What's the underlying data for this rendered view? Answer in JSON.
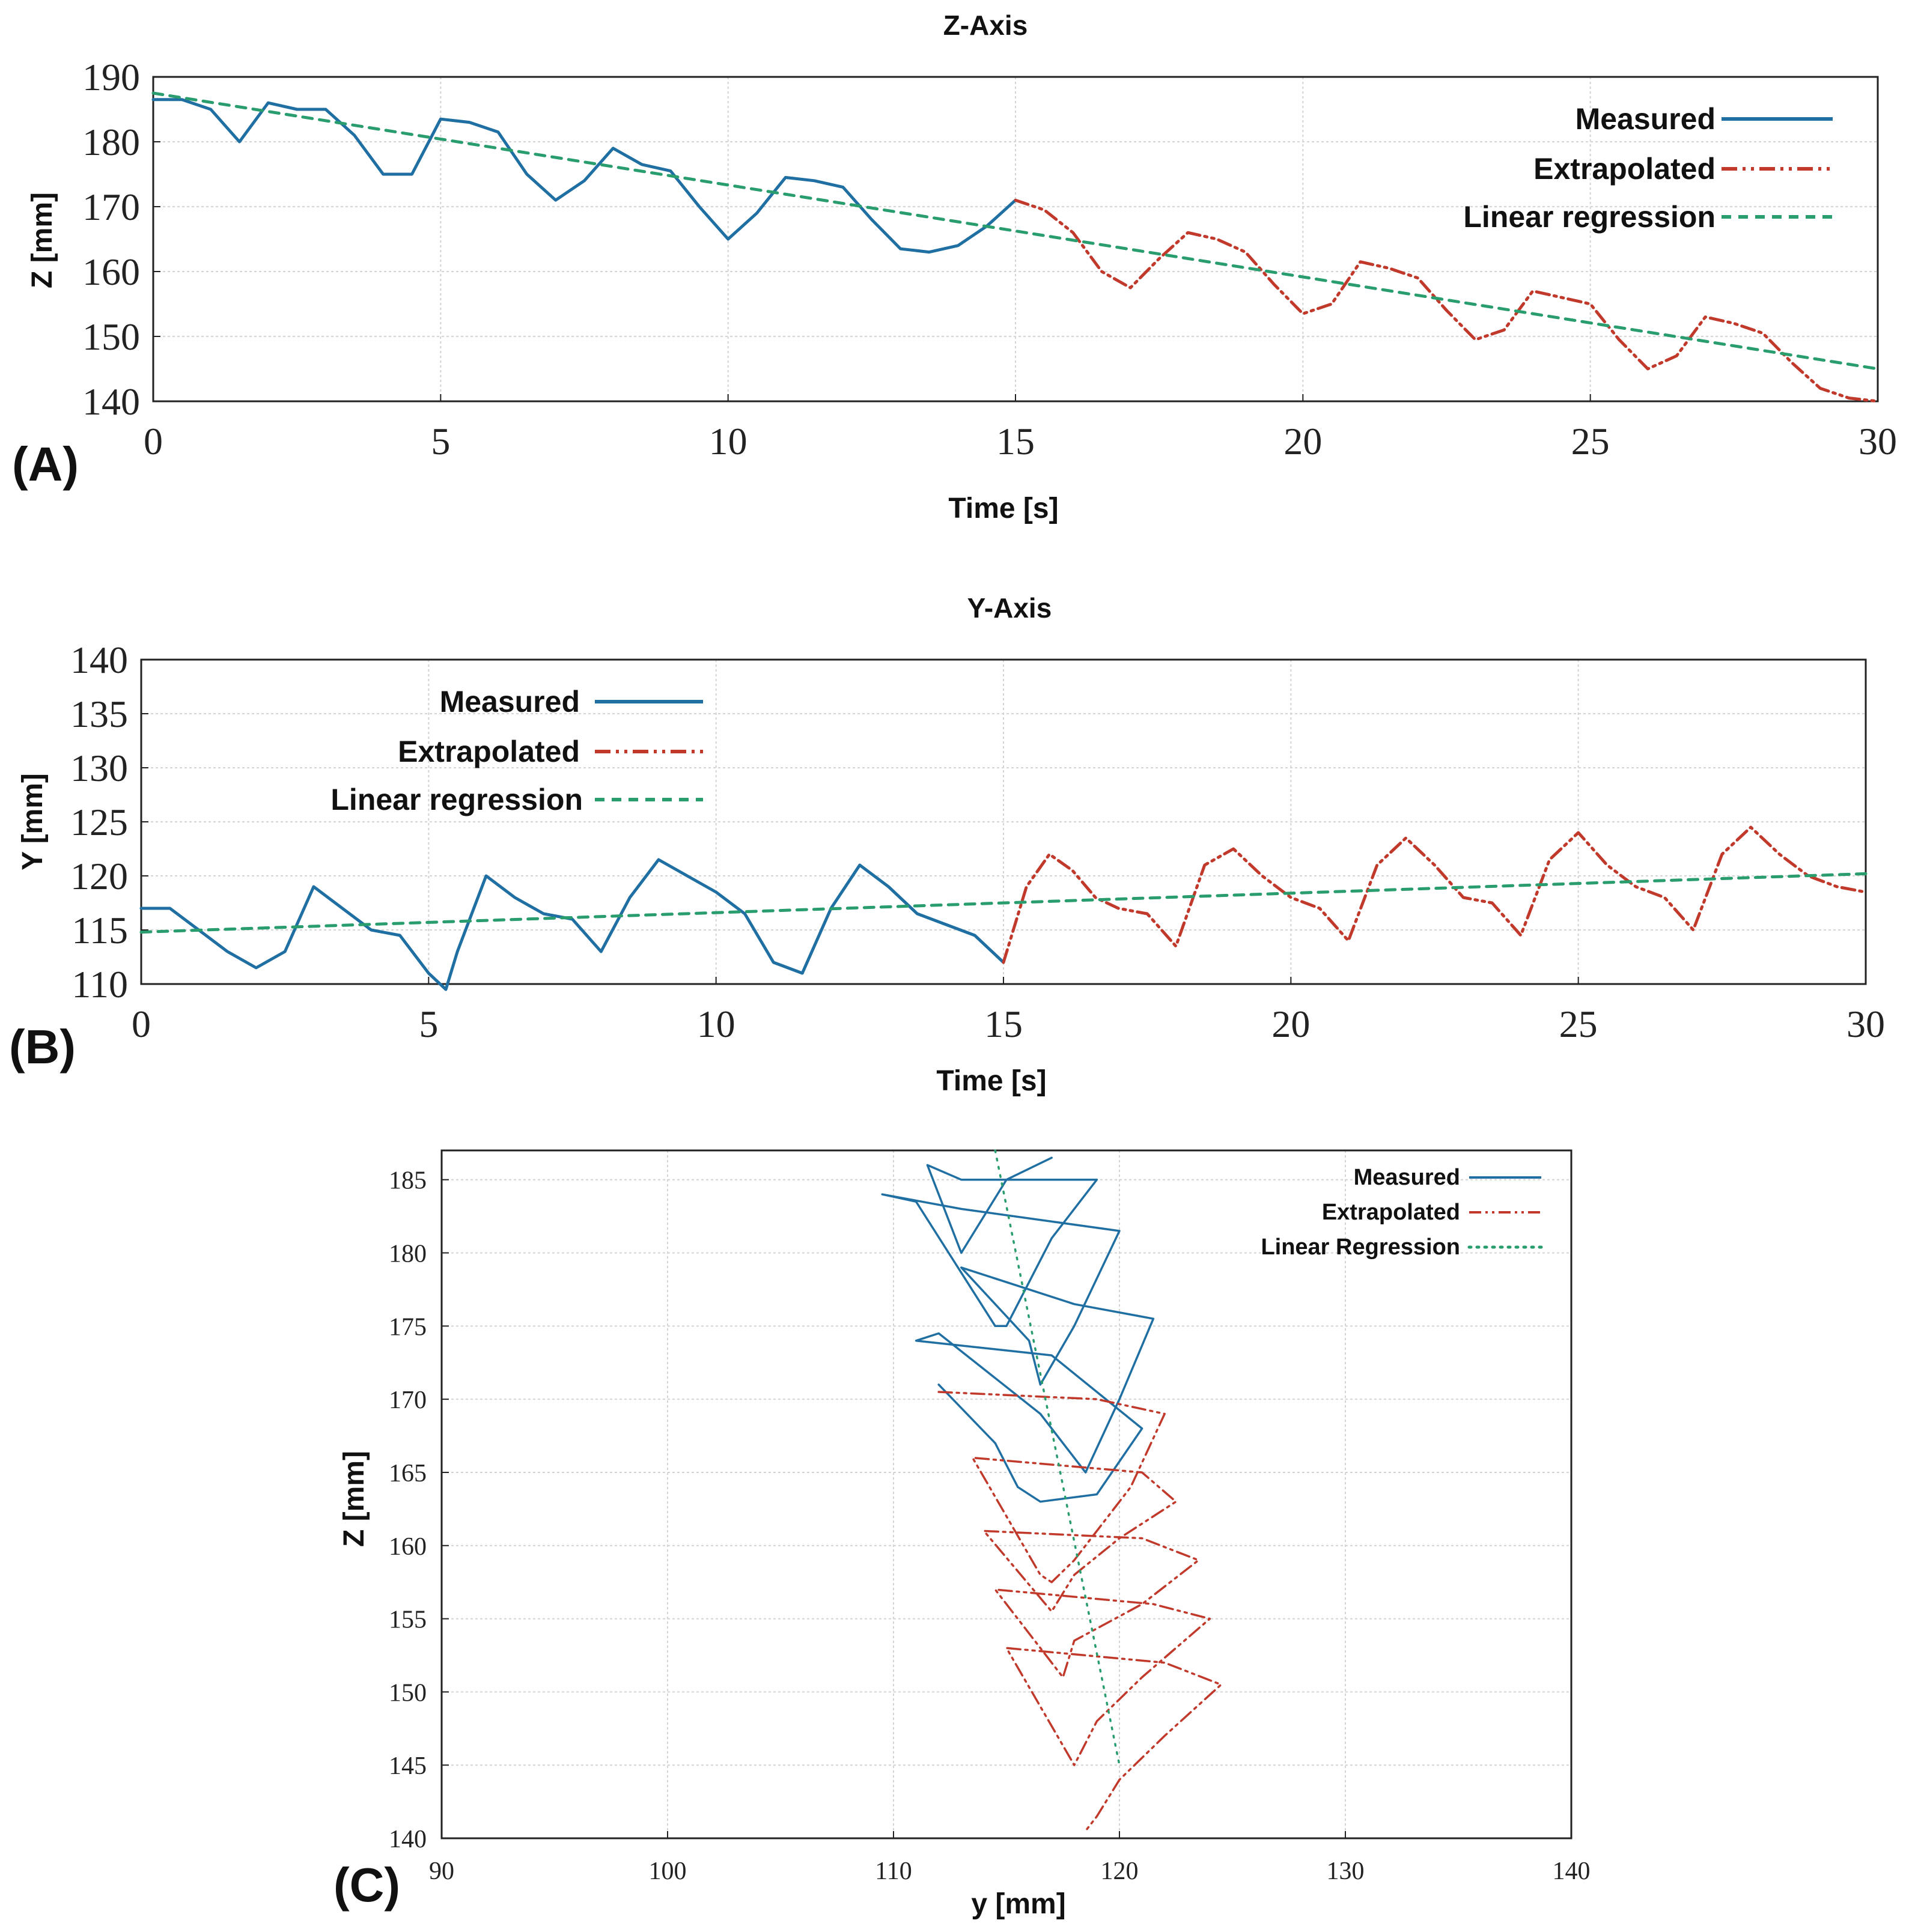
{
  "colors": {
    "measured": "#1f6fa3",
    "extrapolated": "#c0392b",
    "regression": "#2a9d6e"
  },
  "chart_data": [
    {
      "id": "A",
      "type": "line",
      "panel_label": "(A)",
      "title": "Z-Axis",
      "xlabel": "Time [s]",
      "ylabel": "Z [mm]",
      "xlim": [
        0,
        30
      ],
      "ylim": [
        140,
        190
      ],
      "xticks": [
        0,
        5,
        10,
        15,
        20,
        25,
        30
      ],
      "yticks": [
        140,
        150,
        160,
        170,
        180,
        190
      ],
      "grid": true,
      "legend_position": "top-right",
      "legend": [
        "Measured",
        "Extrapolated",
        "Linear regression"
      ],
      "series": [
        {
          "name": "Measured",
          "style": "solid",
          "x": [
            0,
            0.5,
            1.0,
            1.5,
            2.0,
            2.5,
            3.0,
            3.5,
            4.0,
            4.5,
            5.0,
            5.5,
            6.0,
            6.5,
            7.0,
            7.5,
            8.0,
            8.5,
            9.0,
            9.5,
            10.0,
            10.5,
            11.0,
            11.5,
            12.0,
            12.5,
            13.0,
            13.5,
            14.0,
            14.5,
            15.0
          ],
          "y": [
            186.5,
            186.5,
            185,
            180,
            186,
            185,
            185,
            181,
            175,
            175,
            183.5,
            183,
            181.5,
            175,
            171,
            174,
            179,
            176.5,
            175.5,
            170,
            165,
            169,
            174.5,
            174,
            173,
            168,
            163.5,
            163,
            164,
            167,
            171
          ]
        },
        {
          "name": "Extrapolated",
          "style": "dash-dot-dot",
          "x": [
            15.0,
            15.5,
            16.0,
            16.5,
            17.0,
            17.5,
            18.0,
            18.5,
            19.0,
            19.5,
            20.0,
            20.5,
            21.0,
            21.5,
            22.0,
            22.5,
            23.0,
            23.5,
            24.0,
            24.5,
            25.0,
            25.5,
            26.0,
            26.5,
            27.0,
            27.5,
            28.0,
            28.5,
            29.0,
            29.5,
            30.0
          ],
          "y": [
            171,
            169.5,
            166,
            160,
            157.5,
            162,
            166,
            165,
            163,
            158,
            153.5,
            155,
            161.5,
            160.5,
            159,
            154,
            149.5,
            151,
            157,
            156,
            155,
            149.5,
            145,
            147,
            153,
            152,
            150.5,
            146,
            142,
            140.5,
            140
          ]
        },
        {
          "name": "Linear regression",
          "style": "dashed",
          "x": [
            0,
            30
          ],
          "y": [
            187.5,
            145
          ]
        }
      ]
    },
    {
      "id": "B",
      "type": "line",
      "panel_label": "(B)",
      "title": "Y-Axis",
      "xlabel": "Time [s]",
      "ylabel": "Y [mm]",
      "xlim": [
        0,
        30
      ],
      "ylim": [
        110,
        140
      ],
      "xticks": [
        0,
        5,
        10,
        15,
        20,
        25,
        30
      ],
      "yticks": [
        110,
        115,
        120,
        125,
        130,
        135,
        140
      ],
      "grid": true,
      "legend_position": "top-left",
      "legend": [
        "Measured",
        "Extrapolated",
        "Linear regression"
      ],
      "series": [
        {
          "name": "Measured",
          "style": "solid",
          "x": [
            0,
            0.5,
            1.0,
            1.5,
            2.0,
            2.5,
            3.0,
            3.5,
            4.0,
            4.5,
            5.0,
            5.3,
            5.5,
            6.0,
            6.5,
            7.0,
            7.5,
            8.0,
            8.5,
            9.0,
            9.5,
            10.0,
            10.5,
            11.0,
            11.5,
            12.0,
            12.5,
            13.0,
            13.5,
            14.0,
            14.5,
            15.0
          ],
          "y": [
            117,
            117,
            115,
            113,
            111.5,
            113,
            119,
            117,
            115,
            114.5,
            111,
            109.5,
            113,
            120,
            118,
            116.5,
            116,
            113,
            118,
            121.5,
            120,
            118.5,
            116.5,
            112,
            111,
            117,
            121,
            119,
            116.5,
            115.5,
            114.5,
            112
          ]
        },
        {
          "name": "Extrapolated",
          "style": "dash-dot-dot",
          "x": [
            15.0,
            15.4,
            15.8,
            16.2,
            16.6,
            17.0,
            17.5,
            18.0,
            18.5,
            19.0,
            19.5,
            20.0,
            20.5,
            21.0,
            21.5,
            22.0,
            22.5,
            23.0,
            23.5,
            24.0,
            24.5,
            25.0,
            25.5,
            26.0,
            26.5,
            27.0,
            27.5,
            28.0,
            28.5,
            29.0,
            29.5,
            30.0
          ],
          "y": [
            112,
            119,
            122,
            120.5,
            118,
            117,
            116.5,
            113.5,
            121,
            122.5,
            120,
            118,
            117,
            114,
            121,
            123.5,
            121,
            118,
            117.5,
            114.5,
            121.5,
            124,
            121,
            119,
            118,
            115,
            122,
            124.5,
            122,
            120,
            119,
            118.5
          ]
        },
        {
          "name": "Linear regression",
          "style": "dashed",
          "x": [
            0,
            30
          ],
          "y": [
            114.8,
            120.2
          ]
        }
      ]
    },
    {
      "id": "C",
      "type": "line",
      "panel_label": "(C)",
      "title": "",
      "xlabel": "y [mm]",
      "ylabel": "Z [mm]",
      "xlim": [
        90,
        140
      ],
      "ylim": [
        140,
        187
      ],
      "xticks": [
        90,
        100,
        110,
        120,
        130,
        140
      ],
      "yticks": [
        140,
        145,
        150,
        155,
        160,
        165,
        170,
        175,
        180,
        185
      ],
      "grid": true,
      "legend_position": "top-right",
      "legend": [
        "Measured",
        "Extrapolated",
        "Linear Regression"
      ],
      "series": [
        {
          "name": "Measured",
          "style": "solid",
          "x": [
            117,
            117,
            115,
            113,
            111.5,
            113,
            119,
            117,
            115,
            114.5,
            111,
            109.5,
            113,
            120,
            118,
            116.5,
            116,
            113,
            118,
            121.5,
            120,
            118.5,
            116.5,
            112,
            111,
            117,
            121,
            119,
            116.5,
            115.5,
            114.5,
            112
          ],
          "y": [
            186.5,
            186.5,
            185,
            180,
            186,
            185,
            185,
            181,
            175,
            175,
            183.5,
            184,
            183,
            181.5,
            175,
            171,
            174,
            179,
            176.5,
            175.5,
            170,
            165,
            169,
            174.5,
            174,
            173,
            168,
            163.5,
            163,
            164,
            167,
            171
          ]
        },
        {
          "name": "Extrapolated",
          "style": "dash-dot-dot",
          "x": [
            112,
            119,
            122,
            120.5,
            118,
            117,
            116.5,
            113.5,
            121,
            122.5,
            120,
            118,
            117,
            114,
            121,
            123.5,
            121,
            118,
            117.5,
            114.5,
            121.5,
            124,
            121,
            119,
            118,
            115,
            122,
            124.5,
            122,
            120,
            119,
            118.5
          ],
          "y": [
            170.5,
            170,
            169,
            164,
            159,
            157.5,
            158,
            166,
            165,
            163,
            160.5,
            158,
            155.5,
            161,
            160.5,
            159,
            156,
            153.5,
            151,
            157,
            156,
            155,
            151,
            148,
            145,
            153,
            152,
            150.5,
            147,
            144,
            141.5,
            140.5
          ]
        },
        {
          "name": "Linear Regression",
          "style": "dotted",
          "x": [
            114.5,
            120
          ],
          "y": [
            187,
            145
          ]
        }
      ]
    }
  ]
}
